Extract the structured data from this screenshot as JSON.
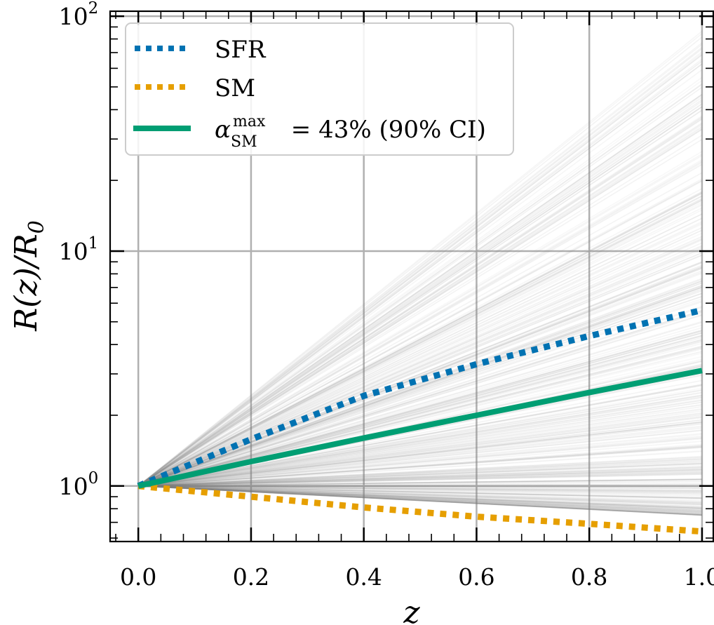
{
  "chart_data": {
    "type": "line",
    "xlabel": "z",
    "ylabel": {
      "base": "R(z)/R",
      "sub": "0"
    },
    "xscale": "linear",
    "yscale": "log",
    "xlim": [
      -0.05,
      1.02
    ],
    "ylim": [
      0.58,
      105
    ],
    "grid": true,
    "x_ticks": [
      0.0,
      0.2,
      0.4,
      0.6,
      0.8,
      1.0
    ],
    "x_tick_labels": [
      "0.0",
      "0.2",
      "0.4",
      "0.6",
      "0.8",
      "1.0"
    ],
    "y_ticks": [
      {
        "value": 1,
        "base": "10",
        "exp": "0"
      },
      {
        "value": 10,
        "base": "10",
        "exp": "1"
      },
      {
        "value": 100,
        "base": "10",
        "exp": "2"
      }
    ],
    "background_samples": {
      "description": "gray posterior draws",
      "color": "#808080",
      "count": 420,
      "end_value_range_at_z1": [
        0.75,
        90
      ]
    },
    "series": [
      {
        "name": "SFR",
        "style": "dotted",
        "color": "#0072b2",
        "x": [
          0.0,
          0.2,
          0.4,
          0.6,
          0.8,
          1.0
        ],
        "y": [
          1.0,
          1.58,
          2.42,
          3.3,
          4.35,
          5.6
        ]
      },
      {
        "name": "SM",
        "style": "dotted",
        "color": "#e69f00",
        "x": [
          0.0,
          0.2,
          0.4,
          0.6,
          0.8,
          1.0
        ],
        "y": [
          1.0,
          0.9,
          0.81,
          0.74,
          0.69,
          0.64
        ]
      },
      {
        "name": "alpha_SM_max",
        "style": "solid",
        "color": "#009e73",
        "x": [
          0.0,
          0.2,
          0.4,
          0.6,
          0.8,
          1.0
        ],
        "y": [
          1.0,
          1.27,
          1.6,
          2.0,
          2.5,
          3.1
        ]
      }
    ],
    "legend": {
      "placement": "top-left",
      "entries": [
        {
          "series": "SFR",
          "label": "SFR"
        },
        {
          "series": "SM",
          "label": "SM"
        },
        {
          "series": "alpha_SM_max",
          "symbol": "α",
          "sup": "max",
          "sub": "SM",
          "label": " = 43% (90% CI)"
        }
      ]
    }
  }
}
